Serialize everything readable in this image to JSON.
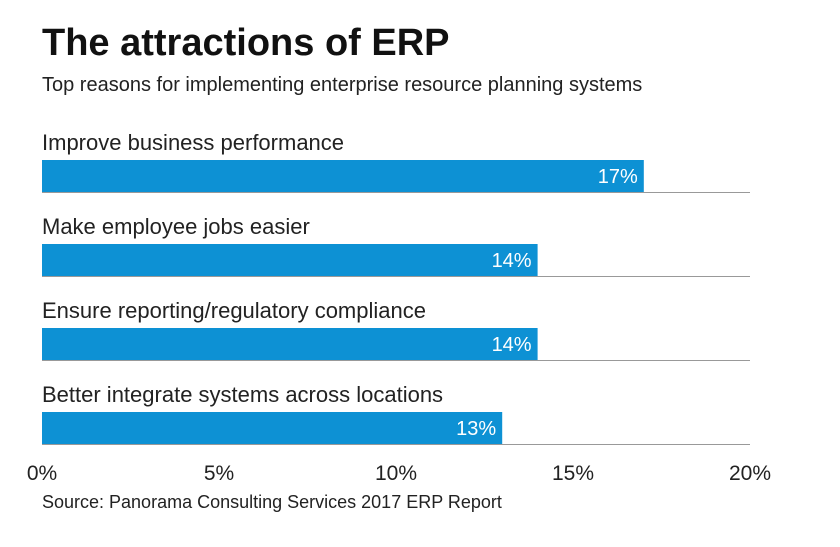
{
  "title": "The attractions of ERP",
  "subtitle": "Top reasons for implementing enterprise resource planning systems",
  "source": "Source: Panorama Consulting Services 2017 ERP Report",
  "colors": {
    "bar": "#0d91d4",
    "bar_label": "#ffffff",
    "text": "#222222",
    "rule": "#999999"
  },
  "chart_data": {
    "type": "bar",
    "orientation": "horizontal",
    "title": "The attractions of ERP",
    "subtitle": "Top reasons for implementing enterprise resource planning systems",
    "categories": [
      "Improve business performance",
      "Make employee jobs easier",
      "Ensure reporting/regulatory compliance",
      "Better integrate systems across locations"
    ],
    "values": [
      17,
      14,
      14,
      13
    ],
    "value_labels": [
      "17%",
      "14%",
      "14%",
      "13%"
    ],
    "xlim": [
      0,
      20
    ],
    "xticks": [
      0,
      5,
      10,
      15,
      20
    ],
    "xtick_labels": [
      "0%",
      "5%",
      "10%",
      "15%",
      "20%"
    ],
    "xlabel": "",
    "ylabel": "",
    "grid": false,
    "legend": "none"
  }
}
